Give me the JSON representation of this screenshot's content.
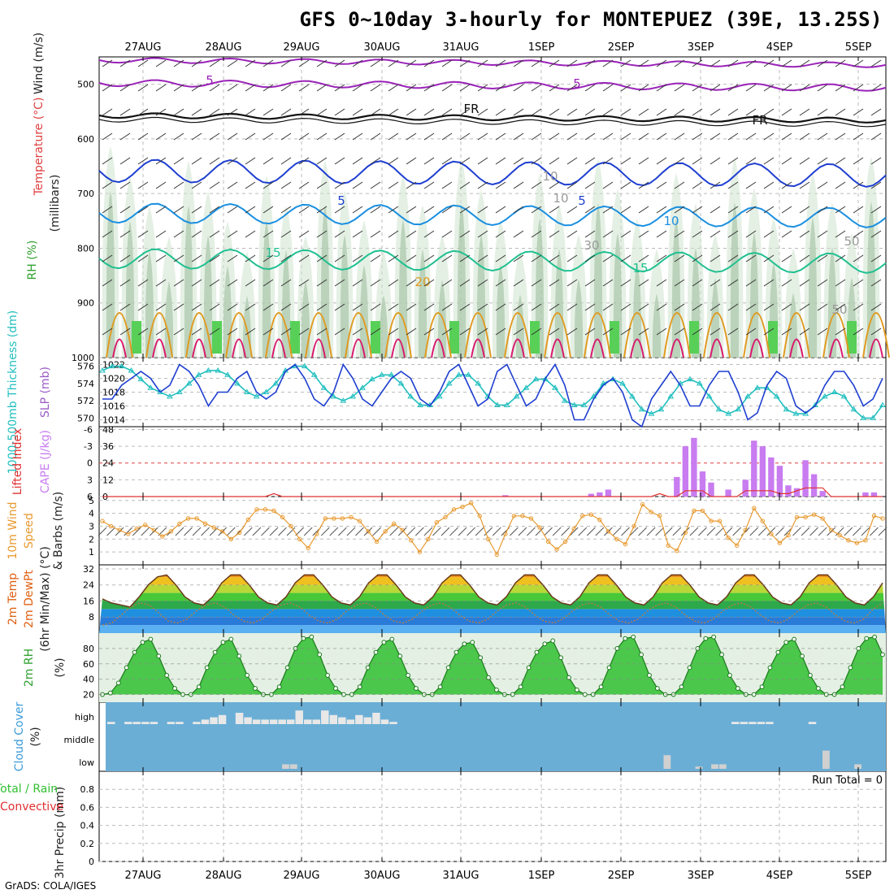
{
  "title": "GFS 0~10day 3-hourly for MONTEPUEZ (39E, 13.25S)",
  "footer": "GrADS: COLA/IGES",
  "colors": {
    "slp": "#1f3fd0",
    "thickness": "#22bfbf",
    "cape": "#c87cf0",
    "lifted_index": "#e03030",
    "wind_speed": "#e89a30",
    "rh_green": "#30c030",
    "cloud_bg": "#6aaed6",
    "temp_warm": "#e06010",
    "temp_cool": "#2a7ad8"
  },
  "date_labels": [
    "27AUG",
    "28AUG",
    "29AUG",
    "30AUG",
    "31AUG",
    "1SEP",
    "2SEP",
    "3SEP",
    "4SEP",
    "5SEP"
  ],
  "chart_data": [
    {
      "id": "upper-air",
      "type": "heatmap",
      "ylabels": [
        "Temperature (°C)",
        "Wind (m/s)",
        "RH (%)",
        "(millibars)"
      ],
      "y_ticks": [
        500,
        600,
        700,
        800,
        900,
        1000
      ],
      "ylim": [
        450,
        1000
      ],
      "contour_labels": [
        "5",
        "5",
        "FR",
        "FR",
        "5",
        "5",
        "10",
        "15",
        "15",
        "20",
        "10",
        "10",
        "30",
        "50",
        "50"
      ],
      "series": [
        {
          "name": "Temperature (°C)",
          "values": []
        }
      ]
    },
    {
      "id": "slp-thickness",
      "type": "line",
      "ylabels": [
        "1000-500mb Thickness (dm)",
        "SLP (mb)"
      ],
      "left_ticks": [
        576,
        574,
        572,
        570
      ],
      "right_ticks": [
        1022,
        1020,
        1018,
        1016,
        1014
      ],
      "slp_values": [
        1017,
        1017,
        1019,
        1020,
        1021,
        1020,
        1018,
        1019,
        1022,
        1021,
        1019,
        1016,
        1018,
        1018,
        1020,
        1021,
        1018,
        1017,
        1018,
        1021,
        1022,
        1020,
        1017,
        1016,
        1018,
        1022,
        1020,
        1017,
        1016,
        1018,
        1020,
        1021,
        1020,
        1017,
        1016,
        1018,
        1021,
        1022,
        1019,
        1016,
        1017,
        1021,
        1022,
        1019,
        1016,
        1017,
        1020,
        1022,
        1019,
        1014,
        1014,
        1017,
        1019,
        1020,
        1018,
        1014,
        1013,
        1017,
        1019,
        1021,
        1019,
        1016,
        1016,
        1019,
        1021,
        1021,
        1018,
        1014,
        1015,
        1019,
        1021,
        1020,
        1016,
        1015,
        1016,
        1019,
        1021,
        1021,
        1019,
        1016,
        1017,
        1020
      ],
      "thickness_values": [
        575.5,
        576,
        576,
        575.5,
        574.5,
        573.5,
        573,
        572.5,
        573,
        574,
        575,
        575.5,
        575.5,
        575,
        574,
        573,
        572.5,
        573,
        574,
        575.5,
        576,
        576,
        575,
        573.5,
        572.5,
        572,
        572.5,
        573.5,
        574.5,
        575,
        575,
        574,
        572.5,
        571.5,
        571.5,
        572.5,
        574,
        575,
        575,
        574,
        572.5,
        571.5,
        571.5,
        572.5,
        573.5,
        574.5,
        574.5,
        573.5,
        572,
        571.5,
        571.5,
        572.5,
        574,
        574.5,
        574,
        572.5,
        571,
        570.5,
        571,
        572.5,
        574,
        574.5,
        574,
        572.5,
        571,
        570.5,
        571,
        572.5,
        573.5,
        573.5,
        572.5,
        571,
        570.5,
        570.5,
        571.5,
        572.5,
        573,
        572.5,
        571,
        570,
        570,
        571.5
      ]
    },
    {
      "id": "cape-li",
      "type": "bar",
      "ylabels": [
        "Lifted Index",
        "CAPE (J/kg)"
      ],
      "left_ticks": [
        "-6",
        "-3",
        "0",
        "3",
        "6"
      ],
      "right_ticks": [
        48,
        36,
        24,
        12,
        0
      ],
      "cape_values": [
        0,
        0,
        0,
        0,
        0,
        0,
        0,
        0,
        0,
        0,
        0,
        0,
        0,
        0,
        0,
        0,
        0,
        0,
        0,
        0,
        0,
        0,
        0,
        0,
        0,
        0,
        0,
        0,
        0,
        0,
        0,
        0,
        0,
        0,
        0,
        0,
        0,
        0,
        0,
        0,
        0,
        0,
        0,
        0,
        0,
        0,
        0,
        1,
        0,
        0,
        0,
        0,
        0,
        0,
        0,
        0,
        0,
        2,
        3,
        5,
        0,
        0,
        0,
        0,
        0,
        0,
        0,
        14,
        36,
        42,
        18,
        10,
        0,
        5,
        0,
        12,
        40,
        36,
        28,
        22,
        8,
        6,
        26,
        16,
        4,
        0,
        0,
        0,
        0,
        3,
        3,
        0
      ],
      "li_values": [
        6,
        6,
        6,
        6,
        6,
        6,
        6,
        6,
        6,
        6,
        6,
        6,
        6,
        6,
        6,
        6,
        6,
        6,
        6,
        6,
        5.5,
        6,
        6,
        6,
        6,
        6,
        6,
        6,
        6,
        6,
        6,
        6,
        6,
        6,
        6,
        6,
        6,
        6,
        6,
        6,
        6,
        6,
        6,
        6,
        6,
        6,
        6,
        6,
        6,
        6,
        6,
        6,
        6,
        6,
        6,
        6,
        6,
        6,
        6,
        6,
        6,
        6,
        6,
        6,
        6,
        5.5,
        6,
        6,
        5,
        5,
        5,
        6,
        6,
        6,
        6,
        5,
        5,
        5,
        5,
        5.5,
        5.5,
        5,
        4.5,
        4.5,
        4.5,
        6,
        6,
        6,
        6,
        6,
        6,
        6
      ]
    },
    {
      "id": "wind10m",
      "type": "line",
      "ylabels": [
        "10m Wind Speed",
        "& Barbs (m/s)"
      ],
      "y_ticks": [
        5,
        4,
        3,
        2,
        1
      ],
      "ylim": [
        0,
        5
      ],
      "values": [
        3.4,
        3.0,
        2.7,
        2.4,
        2.8,
        3.1,
        2.7,
        2.2,
        2.6,
        3.2,
        3.6,
        3.6,
        3.2,
        2.9,
        2.6,
        2.0,
        2.5,
        3.5,
        4.3,
        4.3,
        4.2,
        3.7,
        3.0,
        2.0,
        1.3,
        2.4,
        3.6,
        3.6,
        3.6,
        3.7,
        3.4,
        2.6,
        1.8,
        2.6,
        3.2,
        2.7,
        1.9,
        1.0,
        2.0,
        3.3,
        3.7,
        4.3,
        4.5,
        4.8,
        3.8,
        2.0,
        0.8,
        2.4,
        3.8,
        3.8,
        3.6,
        2.9,
        1.8,
        1.2,
        1.8,
        2.8,
        3.8,
        3.9,
        3.5,
        2.6,
        2.0,
        1.6,
        3.0,
        4.7,
        4.1,
        3.8,
        1.5,
        1.1,
        2.5,
        4.2,
        4.2,
        3.4,
        3.4,
        2.1,
        1.5,
        2.7,
        4.4,
        3.4,
        2.4,
        1.7,
        2.3,
        3.7,
        3.7,
        3.9,
        3.6,
        2.7,
        2.3,
        1.9,
        1.7,
        1.9,
        3.8,
        3.6
      ]
    },
    {
      "id": "temp-dewpt",
      "type": "area",
      "ylabels": [
        "2m Temp",
        "2m DewPt",
        "(6hr Min/Max) (°C)"
      ],
      "y_ticks": [
        32,
        24,
        16,
        8
      ],
      "ylim": [
        0,
        34
      ],
      "temp_values": [
        17,
        15,
        14,
        13,
        18,
        24,
        28,
        29,
        24,
        18,
        15,
        14,
        18,
        25,
        29,
        29,
        24,
        18,
        15,
        14,
        18,
        25,
        29,
        29,
        24,
        18,
        15,
        14,
        18,
        25,
        29,
        29,
        24,
        18,
        15,
        14,
        18,
        25,
        29,
        29,
        24,
        18,
        15,
        14,
        18,
        25,
        29,
        29,
        24,
        18,
        15,
        14,
        18,
        25,
        29,
        29,
        24,
        18,
        15,
        14,
        18,
        25,
        29,
        29,
        24,
        18,
        15,
        14,
        18,
        25,
        29,
        29,
        24,
        18,
        15,
        14,
        18,
        25,
        29,
        29,
        24,
        18,
        15,
        14,
        18,
        25
      ],
      "dewpt_values": [
        4,
        5,
        9,
        13,
        15,
        14,
        10,
        6,
        5,
        7,
        11,
        14,
        15,
        13,
        9,
        6,
        5,
        7,
        11,
        14,
        15,
        13,
        9,
        6,
        5,
        7,
        11,
        14,
        15,
        13,
        9,
        6,
        5,
        7,
        11,
        14,
        15,
        13,
        9,
        6,
        5,
        7,
        11,
        14,
        15,
        13,
        9,
        6,
        5,
        7,
        11,
        14,
        15,
        13,
        9,
        6,
        5,
        7,
        11,
        14,
        15,
        13,
        9,
        6,
        5,
        7,
        11,
        14,
        15,
        13,
        9,
        6,
        5,
        7,
        11,
        14,
        15,
        13,
        9,
        6,
        5,
        7,
        12,
        15
      ]
    },
    {
      "id": "rh2m",
      "type": "area",
      "ylabels": [
        "2m RH",
        "(%)"
      ],
      "y_ticks": [
        80,
        60,
        40,
        20
      ],
      "ylim": [
        10,
        100
      ],
      "values": [
        20,
        22,
        35,
        55,
        75,
        88,
        92,
        70,
        45,
        28,
        20,
        20,
        30,
        55,
        75,
        88,
        92,
        70,
        45,
        28,
        20,
        20,
        30,
        55,
        80,
        93,
        95,
        72,
        45,
        28,
        20,
        20,
        30,
        55,
        75,
        88,
        92,
        70,
        45,
        28,
        20,
        20,
        30,
        55,
        75,
        86,
        88,
        68,
        42,
        26,
        20,
        20,
        30,
        55,
        75,
        86,
        90,
        68,
        42,
        26,
        20,
        20,
        30,
        55,
        80,
        93,
        95,
        72,
        45,
        28,
        20,
        20,
        30,
        55,
        80,
        93,
        95,
        72,
        45,
        28,
        20,
        20,
        30,
        55,
        75,
        88,
        92,
        70,
        45,
        28,
        20,
        20,
        30,
        55,
        80,
        93,
        95,
        72
      ]
    },
    {
      "id": "cloud",
      "type": "bar",
      "ylabels": [
        "Cloud Cover",
        "(%)"
      ],
      "level_labels": [
        "high",
        "middle",
        "low"
      ],
      "high_values": [
        10,
        0,
        10,
        10,
        10,
        10,
        0,
        10,
        10,
        0,
        10,
        20,
        30,
        40,
        0,
        50,
        30,
        20,
        20,
        20,
        20,
        20,
        60,
        20,
        20,
        60,
        40,
        30,
        20,
        40,
        30,
        50,
        20,
        10,
        0,
        0,
        0,
        0,
        0,
        0,
        0,
        0,
        0,
        0,
        0,
        0,
        0,
        0,
        0,
        0,
        0,
        0,
        0,
        0,
        0,
        0,
        0,
        0,
        0,
        0,
        0,
        0,
        0,
        0,
        0,
        0,
        0,
        0,
        0,
        0,
        0,
        0,
        0,
        10,
        10,
        10,
        10,
        10,
        0,
        0,
        0,
        0,
        10,
        0,
        0,
        0,
        0,
        0,
        0,
        0,
        0,
        0
      ],
      "low_values": [
        0,
        0,
        0,
        0,
        0,
        0,
        0,
        0,
        0,
        0,
        0,
        0,
        0,
        0,
        0,
        0,
        0,
        0,
        0,
        0,
        0,
        0,
        20,
        20,
        0,
        0,
        0,
        0,
        0,
        0,
        0,
        0,
        0,
        0,
        0,
        0,
        0,
        0,
        0,
        0,
        0,
        0,
        0,
        0,
        0,
        0,
        0,
        0,
        0,
        0,
        0,
        0,
        0,
        0,
        0,
        0,
        0,
        0,
        0,
        0,
        0,
        0,
        0,
        0,
        0,
        0,
        0,
        0,
        0,
        0,
        60,
        0,
        0,
        0,
        10,
        0,
        20,
        20,
        0,
        0,
        0,
        0,
        0,
        0,
        0,
        0,
        0,
        0,
        0,
        0,
        80,
        0,
        0,
        0,
        20,
        0,
        0,
        0,
        0
      ]
    },
    {
      "id": "precip",
      "type": "bar",
      "ylabels": [
        "3hr Precip (mm)",
        "Total / Rain",
        "Convective"
      ],
      "y_ticks": [
        0.8,
        0.6,
        0.4,
        0.2,
        0
      ],
      "ylim": [
        0,
        1
      ],
      "annotation": "Run Total = 0",
      "values": []
    }
  ]
}
